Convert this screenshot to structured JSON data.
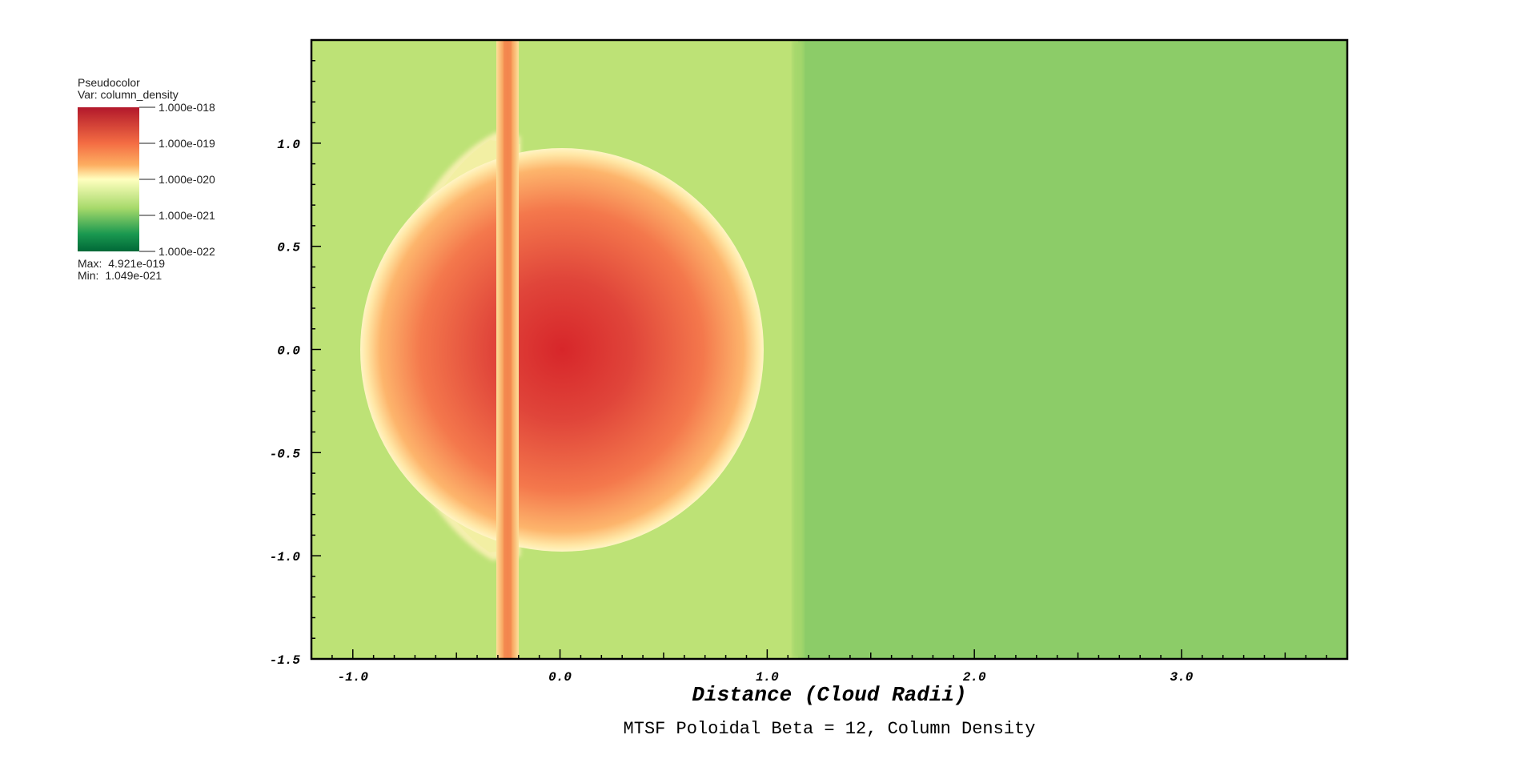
{
  "chart_data": {
    "type": "heatmap",
    "title": "MTSF Poloidal Beta = 12, Column Density",
    "xlabel": "Distance (Cloud Radii)",
    "ylabel": "",
    "xlim": [
      -1.2,
      3.8
    ],
    "ylim": [
      -1.5,
      1.5
    ],
    "x_ticks": [
      "-1.0",
      "0.0",
      "1.0",
      "2.0",
      "3.0"
    ],
    "x_tick_values": [
      -1.0,
      0.0,
      1.0,
      2.0,
      3.0
    ],
    "y_ticks": [
      "1.0",
      "0.5",
      "0.0",
      "-0.5",
      "-1.0",
      "-1.5"
    ],
    "y_tick_values": [
      1.0,
      0.5,
      0.0,
      -0.5,
      -1.0,
      -1.5
    ],
    "features": {
      "cloud_center": [
        0.02,
        0.0
      ],
      "cloud_radius": 0.97,
      "cloud_left_edge": -0.84,
      "filament_x": -0.25,
      "shock_front_x": 1.15
    },
    "colors": {
      "high": "#b2182b",
      "mid_high": "#f46d43",
      "orange": "#fdae61",
      "mid": "#ffffbf",
      "light_green": "#a6d96a",
      "low": "#1a9850",
      "low_end": "#006837",
      "background_left": "#bde276",
      "background_right": "#8ccc68"
    }
  },
  "legend": {
    "title": "Pseudocolor",
    "var": "Var: column_density",
    "ticks": [
      "1.000e-018",
      "1.000e-019",
      "1.000e-020",
      "1.000e-021",
      "1.000e-022"
    ],
    "max_label": "Max:",
    "max_value": "4.921e-019",
    "min_label": "Min:",
    "min_value": "1.049e-021"
  }
}
